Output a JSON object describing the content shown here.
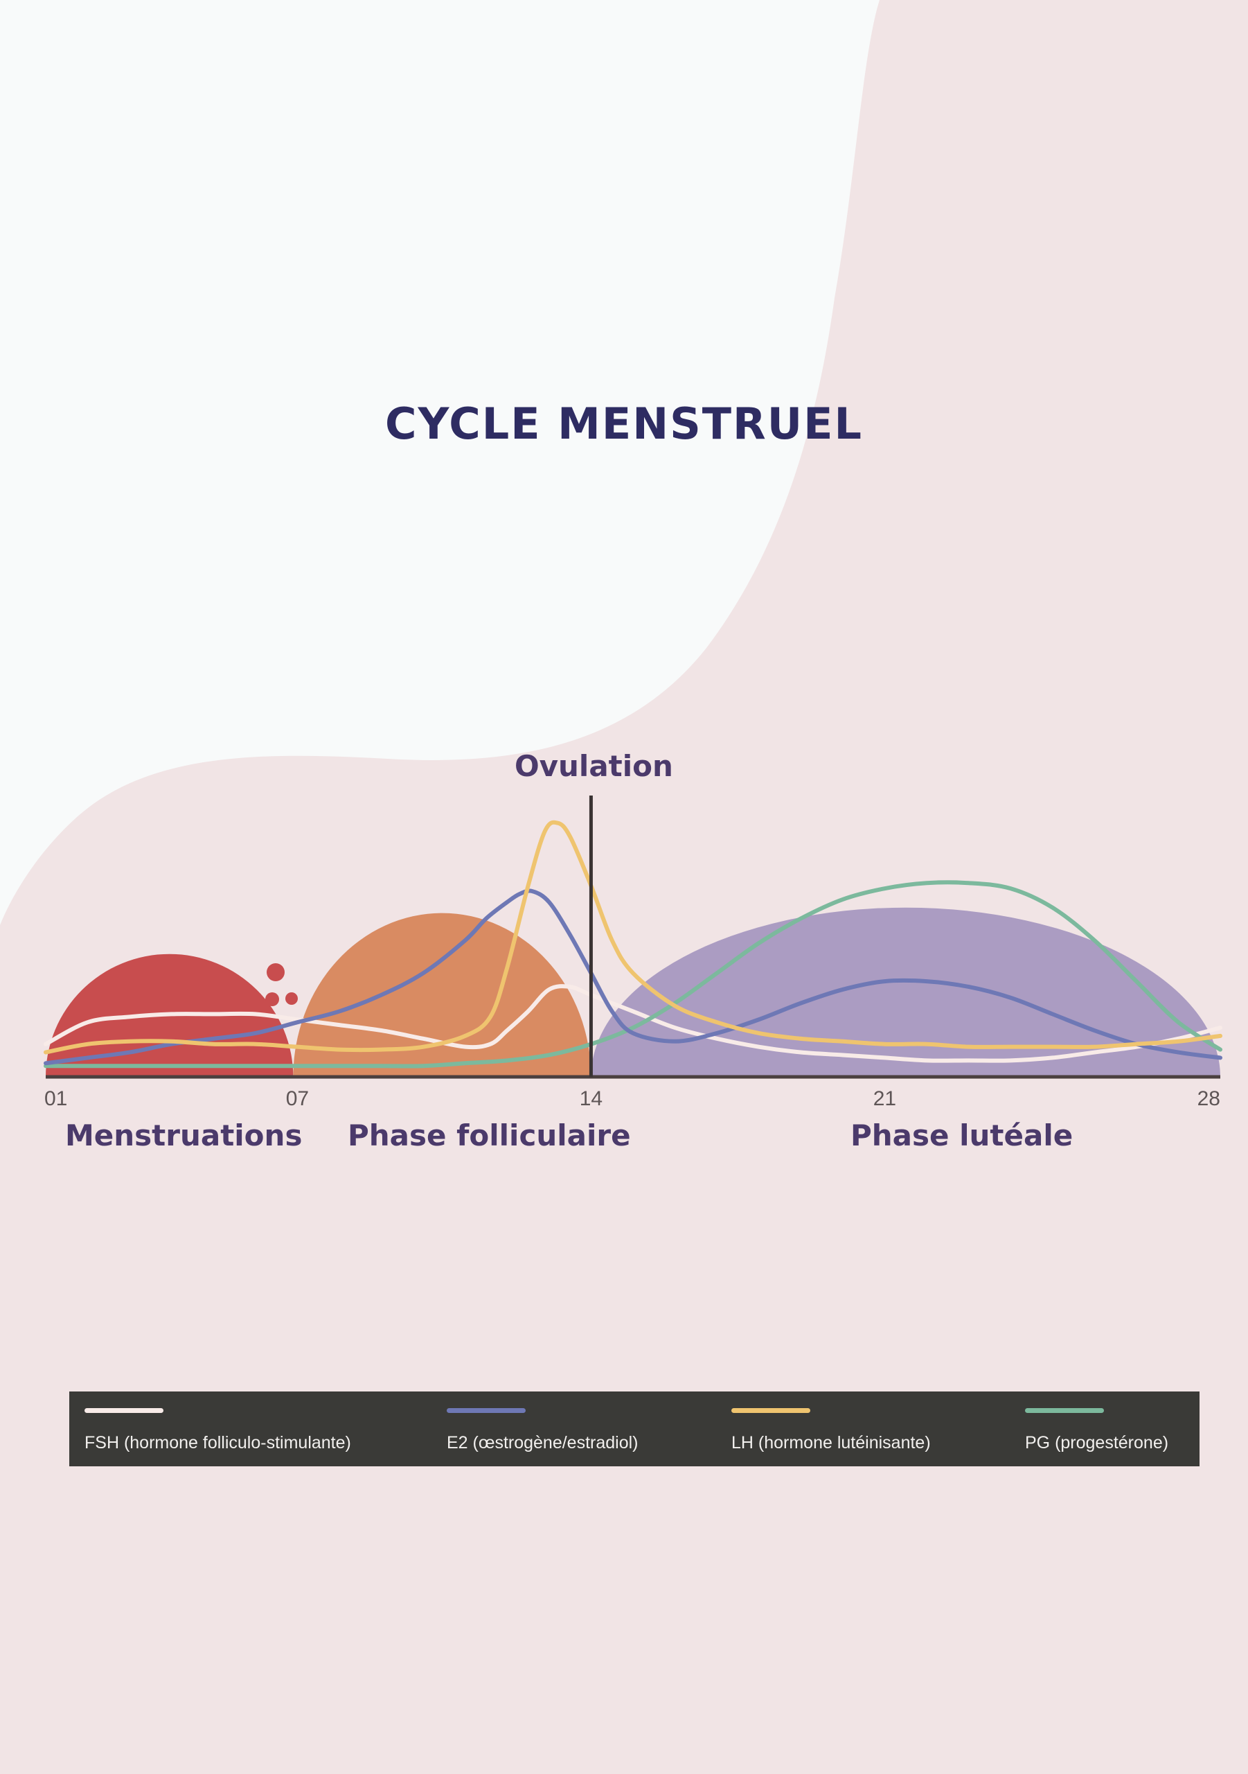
{
  "page": {
    "title": "CYCLE MENSTRUEL"
  },
  "colors": {
    "background_pink": "#f1e4e5",
    "background_white": "#f8fafa",
    "title": "#2e2c62",
    "menstruation": "#c84d4e",
    "follicular": "#d98b62",
    "luteal": "#ab9cc2",
    "axis": "#4a3f3f",
    "legend_bg": "#3a3a37"
  },
  "chart_data": {
    "type": "line",
    "title": "CYCLE MENSTRUEL",
    "xlabel": "",
    "ylabel": "",
    "x_ticks": [
      "01",
      "07",
      "14",
      "21",
      "28"
    ],
    "xlim": [
      1,
      29
    ],
    "ylim": [
      0,
      100
    ],
    "grid": false,
    "legend_position": "bottom",
    "marker": {
      "label": "Ovulation",
      "x": 14
    },
    "phases": [
      {
        "label": "Menstruations",
        "x_start": 1,
        "x_end": 6.9,
        "peak": 45,
        "color": "#c84d4e"
      },
      {
        "label": "Phase folliculaire",
        "x_start": 6.9,
        "x_end": 14,
        "peak": 60,
        "color": "#d98b62"
      },
      {
        "label": "Phase lutéale",
        "x_start": 14,
        "x_end": 29,
        "peak": 62,
        "color": "#ab9cc2"
      }
    ],
    "series": [
      {
        "name": "FSH (hormone folliculo-stimulante)",
        "color": "#f8ebe8",
        "x": [
          1,
          2,
          3,
          4,
          5,
          6,
          7,
          8,
          9,
          10,
          11,
          11.6,
          12,
          12.5,
          13,
          13.5,
          14,
          15,
          16,
          17,
          18,
          19,
          20,
          21,
          22,
          23,
          24,
          25,
          26,
          27,
          28,
          29
        ],
        "values": [
          12,
          20,
          22,
          23,
          23,
          23,
          21,
          19,
          17,
          14,
          11,
          12,
          17,
          24,
          32,
          33,
          30,
          24,
          18,
          14,
          11,
          9,
          8,
          7,
          6,
          6,
          6,
          7,
          9,
          11,
          14,
          18
        ]
      },
      {
        "name": "E2 (œstrogène/estradiol)",
        "color": "#6e78b5",
        "x": [
          1,
          2,
          3,
          4,
          5,
          6,
          7,
          8,
          9,
          10,
          11,
          11.5,
          12,
          12.3,
          12.6,
          13,
          13.5,
          14,
          14.5,
          15,
          16,
          17,
          18,
          19,
          20,
          21,
          22,
          23,
          24,
          25,
          26,
          27,
          28,
          29
        ],
        "values": [
          5,
          7,
          9,
          12,
          14,
          16,
          20,
          24,
          30,
          38,
          50,
          58,
          64,
          67,
          68,
          64,
          52,
          38,
          24,
          16,
          13,
          16,
          21,
          27,
          32,
          35,
          35,
          33,
          29,
          23,
          17,
          12,
          9,
          7
        ]
      },
      {
        "name": "LH (hormone lutéinisante)",
        "color": "#efc46f",
        "x": [
          1,
          2,
          3,
          4,
          5,
          6,
          7,
          8,
          9,
          10,
          11,
          11.6,
          12,
          12.5,
          12.9,
          13.2,
          13.5,
          14,
          14.5,
          15,
          16,
          17,
          18,
          19,
          20,
          21,
          22,
          23,
          24,
          25,
          26,
          27,
          28,
          29
        ],
        "values": [
          9,
          12,
          13,
          13,
          12,
          12,
          11,
          10,
          10,
          11,
          15,
          22,
          40,
          70,
          90,
          93,
          88,
          70,
          50,
          38,
          26,
          20,
          16,
          14,
          13,
          12,
          12,
          11,
          11,
          11,
          11,
          12,
          13,
          15
        ]
      },
      {
        "name": "PG (progestérone)",
        "color": "#7cb99d",
        "x": [
          1,
          2,
          3,
          4,
          5,
          6,
          7,
          8,
          9,
          10,
          11,
          12,
          13,
          14,
          15,
          16,
          17,
          18,
          19,
          20,
          21,
          22,
          23,
          24,
          25,
          26,
          27,
          28,
          29
        ],
        "values": [
          4,
          4,
          4,
          4,
          4,
          4,
          4,
          4,
          4,
          4,
          5,
          6,
          8,
          12,
          18,
          27,
          38,
          49,
          58,
          65,
          69,
          71,
          71,
          69,
          62,
          50,
          35,
          20,
          10
        ]
      }
    ]
  },
  "legend": {
    "items": [
      {
        "label": "FSH (hormone folliculo-stimulante)",
        "color": "#f8ebe8"
      },
      {
        "label": "E2 (œstrogène/estradiol)",
        "color": "#6e78b5"
      },
      {
        "label": "LH (hormone lutéinisante)",
        "color": "#efc46f"
      },
      {
        "label": "PG (progestérone)",
        "color": "#7cb99d"
      }
    ]
  }
}
